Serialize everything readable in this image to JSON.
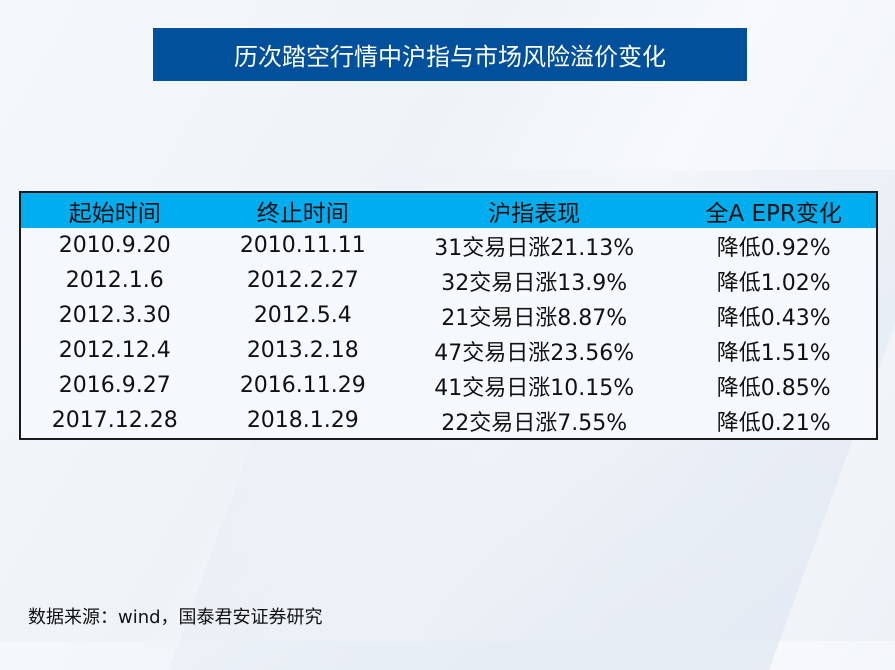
{
  "title": "历次踏空行情中沪指与市场风险溢价变化",
  "table": {
    "headers": [
      "起始时间",
      "终止时间",
      "沪指表现",
      "全A EPR变化"
    ],
    "rows": [
      [
        "2010.9.20",
        "2010.11.11",
        "31交易日涨21.13%",
        "降低0.92%"
      ],
      [
        "2012.1.6",
        "2012.2.27",
        "32交易日涨13.9%",
        "降低1.02%"
      ],
      [
        "2012.3.30",
        "2012.5.4",
        "21交易日涨8.87%",
        "降低0.43%"
      ],
      [
        "2012.12.4",
        "2013.2.18",
        "47交易日涨23.56%",
        "降低1.51%"
      ],
      [
        "2016.9.27",
        "2016.11.29",
        "41交易日涨10.15%",
        "降低0.85%"
      ],
      [
        "2017.12.28",
        "2018.1.29",
        "22交易日涨7.55%",
        "降低0.21%"
      ]
    ]
  },
  "source": "数据来源：wind，国泰君安证券研究",
  "colors": {
    "title_bg": "#00509b",
    "header_bg": "#00aeef"
  }
}
